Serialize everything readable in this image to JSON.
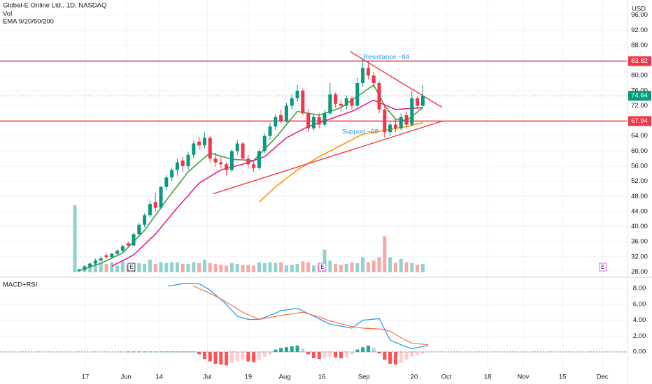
{
  "chart_data": [
    {
      "type": "candlestick",
      "title": "Global-E Online Ltd., 1D, NASDAQ",
      "legend_labels": [
        "Vol",
        "EMA 9/20/50/200"
      ],
      "currency": "USD",
      "up_color": "#089981",
      "down_color": "#f23645",
      "volume_up_color": "#92d2cc",
      "volume_down_color": "#f7a9a7",
      "open": [
        28.2,
        28.6,
        29.4,
        30.2,
        31.0,
        32.4,
        31.9,
        32.8,
        33.6,
        35.6,
        35.0,
        38.0,
        40.5,
        43.0,
        46.5,
        45.0,
        50.5,
        53.0,
        55.0,
        57.5,
        56.0,
        59.0,
        62.5,
        61.5,
        63.5,
        58.0,
        57.0,
        56.5,
        55.0,
        60.0,
        62.0,
        58.0,
        56.5,
        55.5,
        60.0,
        64.0,
        66.5,
        69.5,
        68.0,
        72.0,
        74.0,
        76.0,
        70.0,
        66.0,
        69.0,
        67.0,
        70.0,
        75.0,
        72.5,
        72.0,
        74.0,
        72.0,
        78.0,
        82.0,
        80.0,
        78.0,
        71.0,
        65.0,
        67.0,
        66.0,
        69.5,
        67.0,
        74.0,
        72.0
      ],
      "high": [
        28.9,
        29.7,
        30.5,
        31.5,
        32.1,
        32.9,
        33.0,
        34.0,
        35.2,
        36.0,
        38.4,
        41.0,
        43.5,
        46.8,
        49.0,
        50.8,
        53.6,
        55.6,
        58.0,
        58.5,
        59.8,
        62.8,
        63.8,
        65.0,
        64.0,
        59.5,
        58.5,
        57.0,
        60.5,
        63.0,
        62.5,
        59.0,
        57.5,
        60.5,
        64.8,
        67.5,
        69.8,
        71.0,
        72.8,
        75.0,
        77.5,
        76.5,
        71.0,
        69.8,
        70.0,
        70.8,
        78.0,
        75.5,
        73.5,
        74.8,
        74.5,
        79.5,
        84.5,
        84.0,
        81.0,
        78.5,
        72.0,
        68.0,
        68.5,
        70.0,
        70.5,
        76.0,
        74.5,
        77.5
      ],
      "low": [
        27.9,
        28.3,
        29.0,
        29.8,
        30.6,
        31.5,
        31.6,
        32.4,
        33.2,
        34.6,
        34.8,
        37.5,
        39.8,
        42.5,
        44.0,
        44.5,
        49.5,
        52.0,
        53.5,
        54.5,
        55.0,
        58.0,
        60.5,
        60.8,
        57.0,
        55.8,
        55.5,
        53.5,
        54.5,
        59.0,
        57.5,
        55.5,
        54.5,
        55.0,
        59.5,
        63.0,
        65.5,
        67.5,
        67.5,
        71.0,
        73.0,
        69.5,
        65.0,
        65.5,
        66.0,
        66.5,
        69.5,
        71.5,
        70.5,
        71.0,
        71.0,
        71.5,
        77.0,
        79.0,
        77.0,
        70.0,
        63.5,
        64.0,
        65.0,
        65.5,
        66.0,
        66.5,
        71.0,
        71.5
      ],
      "close": [
        28.6,
        29.4,
        30.2,
        31.0,
        31.6,
        31.9,
        32.8,
        33.6,
        34.8,
        35.0,
        38.0,
        40.5,
        43.0,
        46.0,
        45.0,
        50.5,
        53.0,
        55.0,
        57.0,
        56.0,
        59.0,
        62.0,
        61.5,
        63.5,
        58.0,
        57.0,
        56.5,
        55.0,
        60.0,
        62.0,
        58.0,
        56.5,
        55.5,
        60.0,
        64.0,
        66.5,
        69.0,
        68.0,
        72.0,
        74.0,
        76.0,
        70.0,
        66.0,
        69.0,
        67.0,
        70.0,
        75.0,
        72.5,
        72.0,
        74.0,
        72.0,
        78.0,
        82.0,
        80.0,
        78.0,
        71.0,
        65.0,
        67.0,
        66.0,
        69.0,
        67.0,
        74.0,
        72.0,
        74.64
      ],
      "volume": [
        4.0,
        0.4,
        0.35,
        0.5,
        0.55,
        0.5,
        0.6,
        0.4,
        0.7,
        0.45,
        0.5,
        0.55,
        0.5,
        0.75,
        0.5,
        0.6,
        0.55,
        0.6,
        0.6,
        0.5,
        0.5,
        0.6,
        0.55,
        0.75,
        0.55,
        0.5,
        0.45,
        0.4,
        0.55,
        0.5,
        0.45,
        0.45,
        0.4,
        0.6,
        0.55,
        0.6,
        0.55,
        0.6,
        0.4,
        0.45,
        0.5,
        0.65,
        0.6,
        0.4,
        0.55,
        1.35,
        0.7,
        0.5,
        0.45,
        0.5,
        0.6,
        0.55,
        0.9,
        0.6,
        0.7,
        0.9,
        2.15,
        0.9,
        0.55,
        0.8,
        0.6,
        0.55,
        0.45,
        0.5
      ],
      "lines": [
        {
          "color": "#43a047",
          "x": [
            0,
            4,
            8,
            12,
            16,
            20,
            24,
            28,
            32,
            36,
            40,
            44,
            48,
            52,
            54,
            56,
            58,
            60,
            63
          ],
          "values": [
            28.3,
            30.3,
            33,
            39,
            47,
            54.5,
            59.5,
            57.8,
            57.5,
            63.5,
            70.5,
            69.5,
            71.5,
            75.5,
            77.5,
            72,
            68.5,
            68,
            71.5
          ]
        },
        {
          "color": "#e91e8c",
          "x": [
            6,
            10,
            14,
            18,
            22,
            26,
            30,
            34,
            38,
            42,
            46,
            50,
            54,
            58,
            63
          ],
          "values": [
            29.5,
            32.5,
            38,
            45,
            51.5,
            55,
            56.5,
            58.5,
            63.5,
            66.5,
            68.5,
            70.5,
            73.5,
            71,
            71.5
          ]
        },
        {
          "color": "#ff9800",
          "x": [
            33,
            36,
            40,
            44,
            48,
            52,
            56,
            60,
            63
          ],
          "values": [
            46.5,
            50.5,
            55,
            58.5,
            61.5,
            64.5,
            65.5,
            66.5,
            67.5
          ]
        }
      ],
      "hlines": [
        {
          "value": 83.82,
          "color": "#f23645"
        },
        {
          "value": 67.94,
          "color": "#f23645"
        }
      ],
      "trendlines": [
        {
          "color": "#f23645",
          "x": [
            49.6,
            66.5
          ],
          "values": [
            86.4,
            71.6
          ]
        },
        {
          "color": "#f23645",
          "x": [
            24.6,
            66.5
          ],
          "values": [
            48.7,
            67.9
          ]
        }
      ],
      "annotations": [
        {
          "text": "Resistance ~84",
          "x": 56.3,
          "y": 84.8,
          "color": "#2196f3"
        },
        {
          "text": "Support ~68",
          "x": 51.5,
          "y": 65.1,
          "color": "#2196f3"
        }
      ],
      "events": [
        {
          "label": "E",
          "x": 9.6
        },
        {
          "label": "E",
          "x": 44.6
        },
        {
          "label": "E",
          "x": 96
        }
      ],
      "ylim": [
        26.6,
        100
      ],
      "yticks": [
        {
          "value": 28,
          "label": "28.00"
        },
        {
          "value": 32,
          "label": "32.00"
        },
        {
          "value": 36,
          "label": "36.00"
        },
        {
          "value": 40,
          "label": "40.00"
        },
        {
          "value": 44,
          "label": "44.00"
        },
        {
          "value": 48,
          "label": "48.00"
        },
        {
          "value": 52,
          "label": "52.00"
        },
        {
          "value": 56,
          "label": "56.00"
        },
        {
          "value": 60,
          "label": "60.00"
        },
        {
          "value": 64,
          "label": "64.00"
        },
        {
          "value": 68,
          "label": "68.00"
        },
        {
          "value": 72,
          "label": "72.00"
        },
        {
          "value": 76,
          "label": "76.00"
        },
        {
          "value": 80,
          "label": "80.00"
        },
        {
          "value": 84,
          "label": "84.00"
        },
        {
          "value": 88,
          "label": "88.00"
        },
        {
          "value": 92,
          "label": "92.00"
        },
        {
          "value": 96,
          "label": "96.00"
        }
      ],
      "xlim": [
        -14.49,
        100.51
      ],
      "xticks": [
        {
          "value": 1.15,
          "label": "17"
        },
        {
          "value": 8.6,
          "label": "Jun"
        },
        {
          "value": 14.7,
          "label": "14"
        },
        {
          "value": 23.5,
          "label": "Jul"
        },
        {
          "value": 31,
          "label": "19"
        },
        {
          "value": 37.7,
          "label": "Aug"
        },
        {
          "value": 44.5,
          "label": "16"
        },
        {
          "value": 52.2,
          "label": "Sep"
        },
        {
          "value": 61.4,
          "label": "20"
        },
        {
          "value": 67.3,
          "label": "Oct"
        },
        {
          "value": 74.9,
          "label": "18"
        },
        {
          "value": 81.4,
          "label": "Nov"
        },
        {
          "value": 88.6,
          "label": "15"
        },
        {
          "value": 95.9,
          "label": "Dec"
        }
      ],
      "grid": true
    },
    {
      "type": "macd",
      "title": "MACD+RSI",
      "histogram": [
        null,
        null,
        null,
        null,
        null,
        null,
        null,
        null,
        null,
        0.05,
        0.05,
        0.05,
        0.05,
        0.05,
        0.05,
        0.05,
        0.05,
        0.05,
        0.05,
        0.05,
        0.05,
        0.05,
        -0.3,
        -0.9,
        -1.2,
        -1.5,
        -1.6,
        -1.7,
        -1.4,
        -1.2,
        -1.0,
        -1.2,
        -1.3,
        -1.0,
        -0.6,
        -0.3,
        0.3,
        0.5,
        0.6,
        0.7,
        0.8,
        0.4,
        -0.3,
        -0.8,
        -0.9,
        -0.8,
        -0.6,
        -0.7,
        -0.8,
        -0.6,
        -0.3,
        0.3,
        0.6,
        0.8,
        0.5,
        -0.2,
        -1.0,
        -1.5,
        -1.6,
        -1.4,
        -1.0,
        -0.6,
        -0.4,
        -0.2
      ],
      "hist_colors": {
        "pos_up": "#26a69a",
        "pos_down": "#b2dfdb",
        "neg_down": "#ff5252",
        "neg_up": "#ffcdd2"
      },
      "lines": [
        {
          "color": "#2196f3",
          "x": [
            16.3,
            19,
            22,
            24,
            27,
            29,
            31,
            33,
            35,
            37,
            40,
            43,
            46,
            50,
            52,
            55,
            57,
            59,
            61,
            64
          ],
          "values": [
            8.3,
            8.6,
            8.6,
            7.8,
            6.0,
            4.5,
            4.1,
            4.1,
            4.6,
            5.2,
            5.5,
            4.5,
            3.5,
            3.0,
            4.0,
            4.2,
            1.5,
            0.9,
            0.4,
            0.8
          ]
        },
        {
          "color": "#ff7043",
          "x": [
            21,
            24,
            26.5,
            30,
            33,
            37,
            41,
            44,
            46,
            50,
            52,
            55,
            57,
            59,
            61,
            64
          ],
          "values": [
            8.3,
            7.4,
            6.5,
            5.0,
            4.1,
            4.6,
            5.0,
            4.4,
            3.9,
            3.2,
            3.0,
            2.9,
            2.6,
            1.8,
            1.1,
            0.9
          ]
        }
      ],
      "ylim": [
        -1.9,
        9.2
      ],
      "yticks": [
        {
          "value": 0,
          "label": "0.00"
        },
        {
          "value": 2,
          "label": "2.00"
        },
        {
          "value": 4,
          "label": "4.00"
        },
        {
          "value": 6,
          "label": "6.00"
        },
        {
          "value": 8,
          "label": "8.00"
        }
      ],
      "grid": true
    }
  ]
}
